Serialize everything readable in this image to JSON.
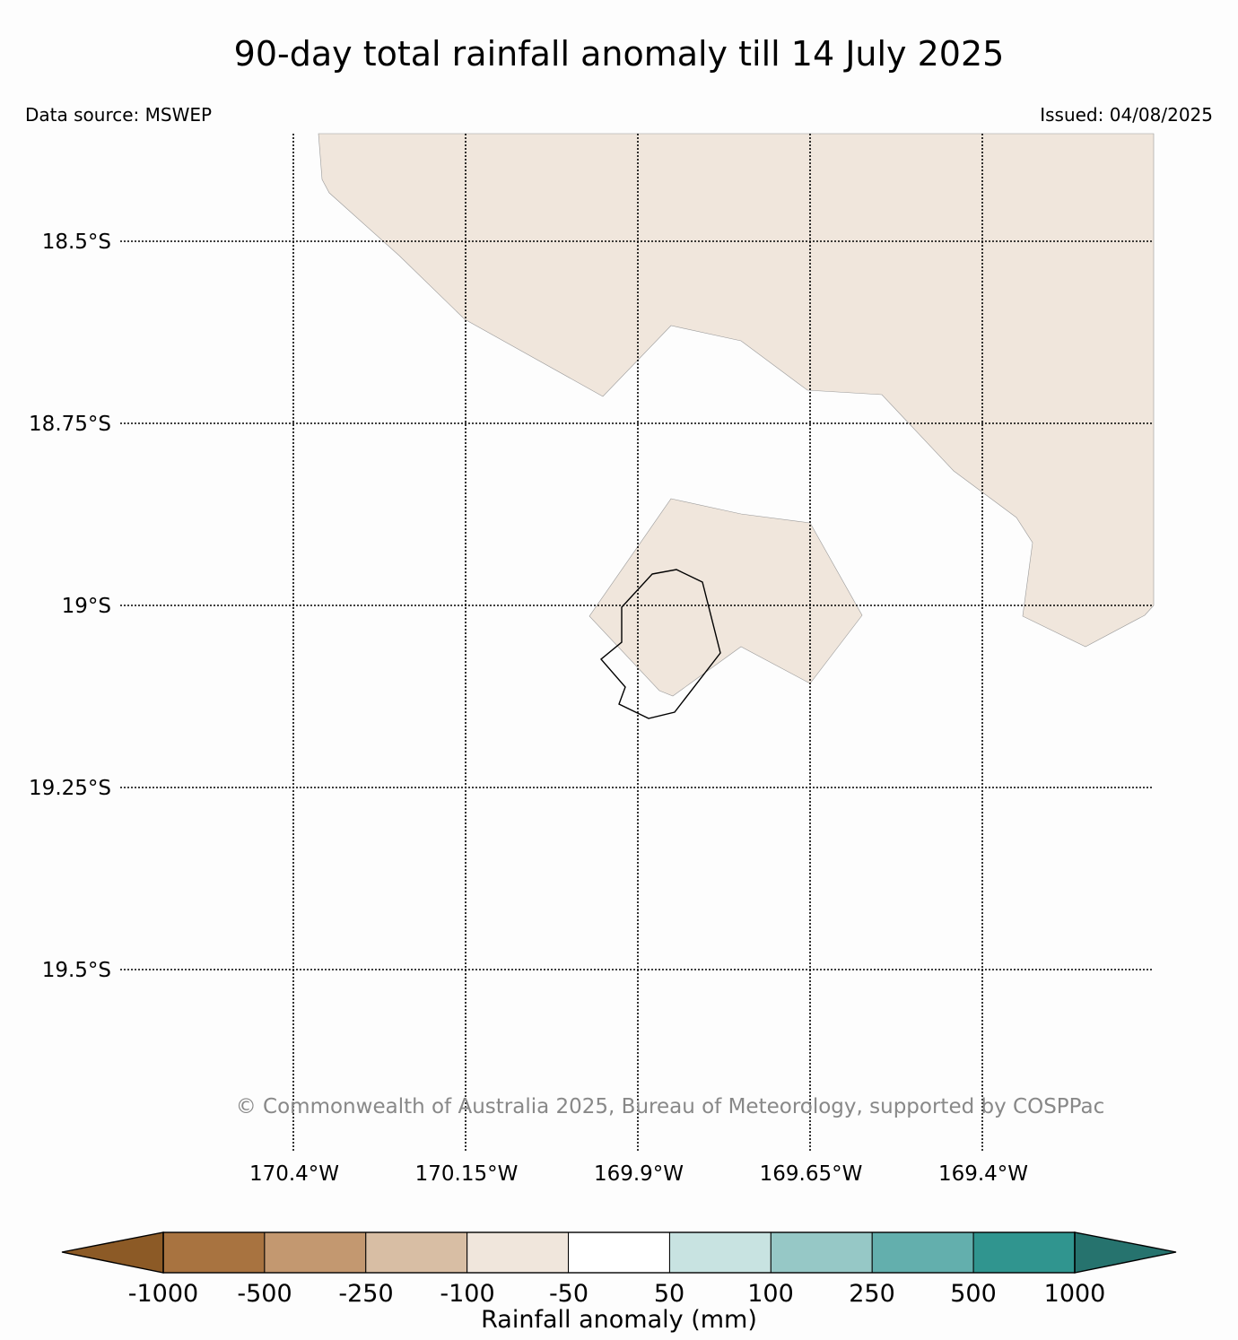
{
  "title": "90-day total rainfall anomaly till 14 July 2025",
  "data_source": "Data source: MSWEP",
  "issued": "Issued: 04/08/2025",
  "copyright": "© Commonwealth of Australia 2025, Bureau of Meteorology, supported by COSPPac",
  "map": {
    "lat_labels": [
      "18.5°S",
      "18.75°S",
      "19°S",
      "19.25°S",
      "19.5°S"
    ],
    "lon_labels": [
      "170.4°W",
      "170.15°W",
      "169.9°W",
      "169.65°W",
      "169.4°W"
    ],
    "anomaly_fill_color": "#f0e6dc",
    "gridline_style": "dotted"
  },
  "colorbar": {
    "title": "Rainfall anomaly (mm)",
    "tick_labels": [
      "-1000",
      "-500",
      "-250",
      "-100",
      "-50",
      "50",
      "100",
      "250",
      "500",
      "1000"
    ],
    "colors": [
      "#8c5a26",
      "#a87340",
      "#c39870",
      "#d8bea4",
      "#f0e6dc",
      "#ffffff",
      "#c8e3e1",
      "#96c8c6",
      "#63afad",
      "#30958f",
      "#26736e"
    ]
  }
}
